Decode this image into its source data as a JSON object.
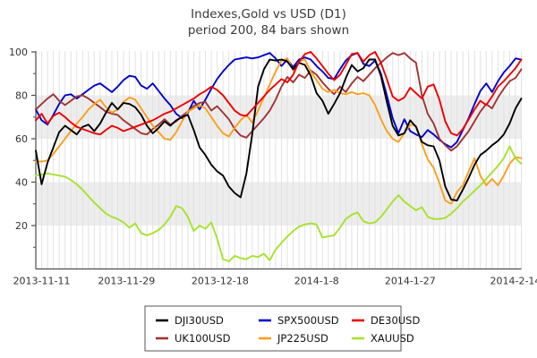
{
  "title": {
    "line1": "Indexes,Gold vs USD (D1)",
    "line2": "period 200, 84 bars shown"
  },
  "colors": {
    "background": "#ffffff",
    "band": "#ededed",
    "gridline": "#e2e2e2",
    "axis": "#4d4d4d",
    "tick_text": "#333333",
    "title_text": "#3a3a3a",
    "legend_border": "#555555"
  },
  "legend": {
    "position": "bottom",
    "rows": 2,
    "columns": 3,
    "items": [
      {
        "label": "DJI30USD",
        "color": "#000000"
      },
      {
        "label": "SPX500USD",
        "color": "#0000cc"
      },
      {
        "label": "DE30USD",
        "color": "#ec0000"
      },
      {
        "label": "UK100USD",
        "color": "#a03434"
      },
      {
        "label": "JP225USD",
        "color": "#f9a01b"
      },
      {
        "label": "XAUUSD",
        "color": "#a6e22c"
      }
    ]
  },
  "chart_data": {
    "type": "line",
    "title": "Indexes,Gold vs USD (D1)",
    "subtitle": "period 200, 84 bars shown",
    "bars_shown": 84,
    "ylim": [
      0,
      100.5
    ],
    "y_ticks": [
      20,
      40,
      60,
      80,
      100
    ],
    "y_minor_ticks": [
      10,
      30,
      50,
      70,
      90
    ],
    "grid_bands": [
      [
        20,
        40
      ],
      [
        60,
        80
      ]
    ],
    "vertical_gridline_per_bar": true,
    "legend_position": "bottom",
    "x_ticks": [
      {
        "label": "2013-11-11",
        "bar": 1
      },
      {
        "label": "2013-11-29",
        "bar": 15.5
      },
      {
        "label": "2013-12-18",
        "bar": 31.5
      },
      {
        "label": "2014-1-8",
        "bar": 48
      },
      {
        "label": "2014-1-27",
        "bar": 64
      },
      {
        "label": "2014-2-14",
        "bar": 82
      }
    ],
    "draw_order": [
      1,
      3,
      4,
      5,
      0,
      2
    ],
    "series": [
      {
        "name": "DJI30USD",
        "color": "#000000",
        "values": [
          54.5,
          39,
          49,
          56,
          63,
          66,
          64,
          62,
          65.5,
          66.5,
          63.5,
          67,
          72,
          76.5,
          73.5,
          76.5,
          76,
          74.5,
          71,
          66,
          62.5,
          65,
          68,
          66,
          68.5,
          70,
          71,
          64,
          56,
          52.5,
          48,
          45,
          43,
          38,
          35,
          33,
          44,
          62,
          84,
          92,
          96.5,
          96,
          96.5,
          95.5,
          92,
          95,
          94,
          89,
          81,
          77.5,
          71.5,
          76,
          81,
          88,
          94,
          91,
          92.5,
          96.5,
          96.5,
          89,
          77,
          66,
          61.5,
          62.5,
          68.5,
          65.5,
          58.5,
          57,
          56.5,
          50,
          38,
          32,
          31.5,
          36.5,
          42,
          48,
          52.5,
          54.5,
          57,
          59,
          62,
          67,
          74,
          78.5
        ]
      },
      {
        "name": "SPX500USD",
        "color": "#0000cc",
        "values": [
          73.5,
          68.5,
          66.5,
          71,
          76,
          80,
          80.5,
          78.5,
          80.5,
          82.5,
          84.5,
          85.5,
          83.5,
          81.5,
          84,
          87,
          89,
          88.5,
          84.5,
          83,
          85.5,
          82,
          78.5,
          75.5,
          71.5,
          69.5,
          72,
          77.5,
          73.5,
          78,
          83,
          87.5,
          91,
          94,
          96.5,
          97,
          97.5,
          97,
          97.5,
          98.5,
          99.5,
          97,
          93.5,
          96.5,
          93,
          96.5,
          97.5,
          96.5,
          93.5,
          91,
          88,
          87.5,
          92,
          96,
          98.5,
          99.5,
          94.5,
          93.5,
          96,
          90,
          80,
          69.5,
          62.5,
          69,
          63.5,
          62,
          60.8,
          64,
          62,
          59.5,
          57.5,
          56,
          58.5,
          64,
          69.5,
          76,
          82,
          85.5,
          81.5,
          86.5,
          90.5,
          93.5,
          97,
          96.5
        ]
      },
      {
        "name": "DE30USD",
        "color": "#ec0000",
        "values": [
          68.5,
          71.5,
          67,
          70.5,
          72,
          70,
          67.5,
          65.5,
          64.5,
          63.5,
          62.5,
          62,
          64,
          66,
          65,
          63.5,
          64.5,
          65.5,
          66.5,
          67.5,
          68.5,
          70,
          71.5,
          72.5,
          74,
          75.5,
          77,
          78.5,
          80.5,
          82,
          84,
          82.5,
          80,
          76.5,
          73,
          71,
          70.5,
          73.5,
          76.5,
          79.5,
          82.5,
          85,
          87.5,
          86,
          89.5,
          95.5,
          99,
          100,
          97,
          93.5,
          90,
          87,
          89.5,
          94,
          99,
          99.5,
          95.5,
          98.5,
          100,
          95,
          87.5,
          79.5,
          77.5,
          79,
          83.5,
          81,
          78.5,
          84,
          85,
          78,
          68,
          62.5,
          61.5,
          64.5,
          69,
          73.5,
          77.5,
          75.5,
          79.5,
          84,
          86.5,
          89.5,
          92.5,
          96.5
        ]
      },
      {
        "name": "UK100USD",
        "color": "#a03434",
        "values": [
          73.5,
          76,
          78.5,
          80.5,
          77.5,
          75.5,
          77.5,
          79.5,
          80,
          78.5,
          76.5,
          74.5,
          72.5,
          71.5,
          71,
          68.5,
          66.5,
          64.5,
          62.5,
          62,
          64.5,
          66.5,
          69,
          66.5,
          68,
          70.5,
          72.5,
          75,
          76.5,
          77,
          73,
          75,
          72,
          69,
          64.5,
          61.5,
          60.5,
          63.5,
          66.5,
          69.5,
          73,
          78,
          84,
          88.5,
          86,
          89.5,
          88,
          91.5,
          89.5,
          86,
          83,
          80.5,
          84,
          81.5,
          85.5,
          88.5,
          86.5,
          89.5,
          92.5,
          95,
          97.5,
          99.5,
          98.5,
          99.5,
          97,
          95,
          80,
          71.5,
          67,
          60,
          57,
          54.5,
          56.5,
          60,
          63.5,
          68,
          72.5,
          76,
          74,
          79,
          83,
          86.5,
          88,
          92
        ]
      },
      {
        "name": "JP225USD",
        "color": "#f9a01b",
        "values": [
          49.5,
          49.5,
          50,
          53,
          56.5,
          60,
          63.5,
          67,
          70,
          73.5,
          76,
          78,
          74.5,
          72,
          73.5,
          77,
          79,
          78,
          74,
          70,
          66,
          63,
          60,
          59.5,
          63,
          68,
          72.5,
          74,
          75.5,
          74,
          70,
          66,
          62.5,
          61,
          65,
          68.5,
          71,
          67.5,
          73,
          79,
          85,
          91,
          96,
          97,
          91.5,
          95.5,
          96.5,
          91,
          87,
          83,
          81.5,
          82.5,
          81,
          80.5,
          81.5,
          80.5,
          81,
          80,
          75.5,
          69,
          63.5,
          60,
          58.5,
          62.5,
          66.5,
          66,
          57.5,
          50.5,
          46.5,
          39.5,
          31.5,
          30,
          35.5,
          38.5,
          45,
          51,
          43,
          38.5,
          41.5,
          38.5,
          43,
          48.5,
          51.5,
          51
        ]
      },
      {
        "name": "XAUUSD",
        "color": "#a6e22c",
        "values": [
          43,
          43.5,
          44,
          43.5,
          43,
          42.5,
          41,
          39,
          36.5,
          33.5,
          30.5,
          28,
          25.5,
          24,
          23,
          21.5,
          19,
          21,
          16.5,
          15.5,
          16.5,
          18,
          20.5,
          24,
          29,
          28,
          24,
          17.5,
          20,
          18.5,
          21.5,
          14,
          4.5,
          3.5,
          6,
          5,
          4.5,
          6,
          5.5,
          7,
          4,
          9,
          12,
          15,
          17.5,
          19.5,
          20.5,
          21,
          20.5,
          14.5,
          15,
          15.5,
          19,
          23,
          25,
          26,
          22,
          21,
          21.5,
          24,
          27.5,
          31,
          34,
          31,
          29,
          27,
          28.5,
          24,
          23,
          23,
          23.5,
          25.5,
          28,
          31,
          33.5,
          36,
          38.5,
          41.5,
          44.5,
          47.5,
          51,
          56.5,
          51,
          48.5
        ]
      }
    ]
  }
}
